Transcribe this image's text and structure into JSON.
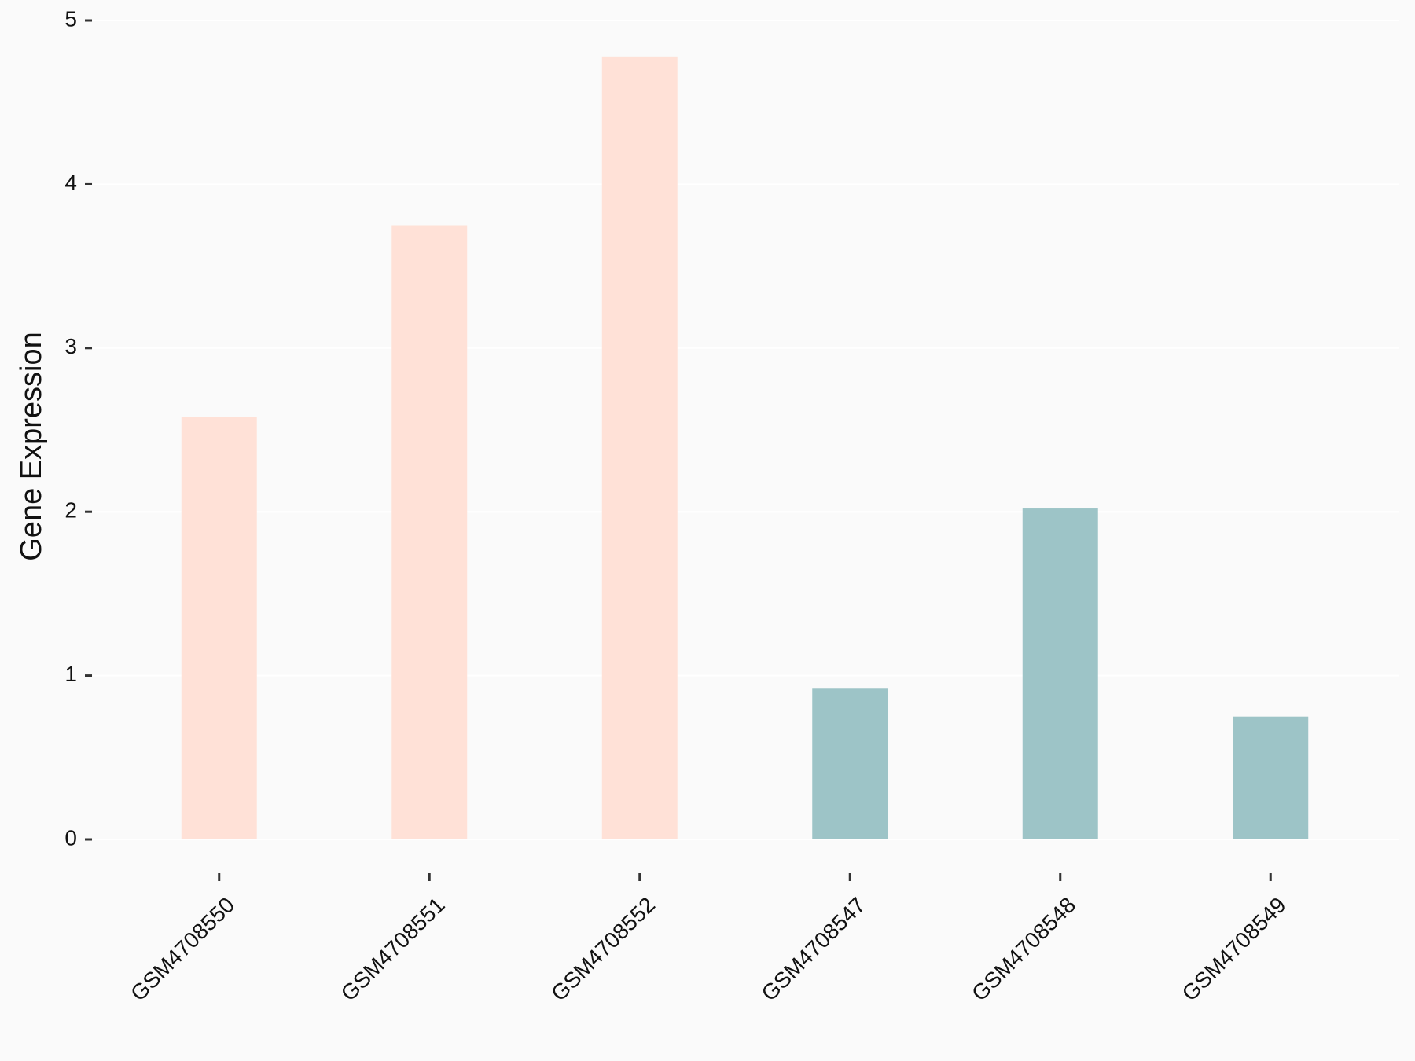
{
  "chart_data": {
    "type": "bar",
    "y_label": "Gene Expression",
    "categories": [
      "GSM4708550",
      "GSM4708551",
      "GSM4708552",
      "GSM4708547",
      "GSM4708548",
      "GSM4708549"
    ],
    "values": [
      2.58,
      3.75,
      4.78,
      0.92,
      2.02,
      0.75
    ],
    "colors": [
      "#ffe1d7",
      "#ffe1d7",
      "#ffe1d7",
      "#9dc4c7",
      "#9dc4c7",
      "#9dc4c7"
    ],
    "ylim": [
      0,
      5
    ],
    "yticks": [
      0,
      1,
      2,
      3,
      4,
      5
    ],
    "grid": true
  }
}
